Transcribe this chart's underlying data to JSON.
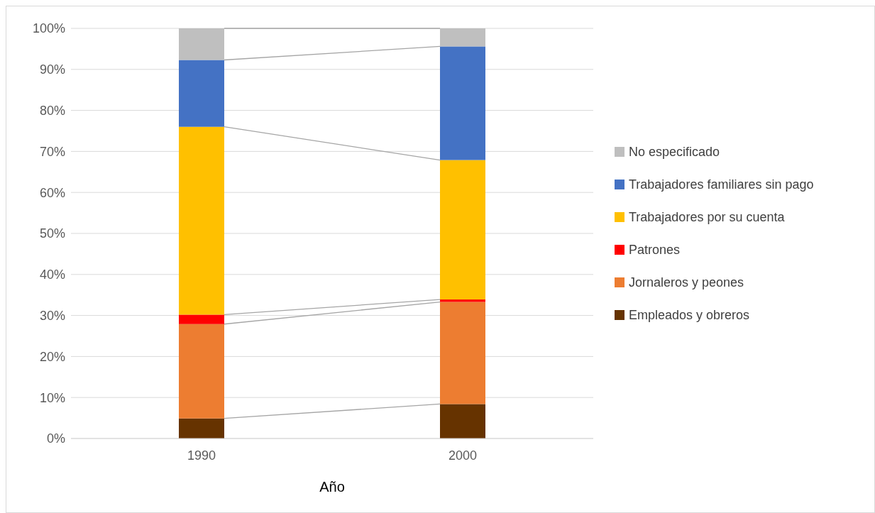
{
  "chart_data": {
    "type": "bar",
    "stacked": true,
    "xlabel": "Año",
    "categories": [
      "1990",
      "2000"
    ],
    "series": [
      {
        "name": "Empleados y obreros",
        "color": "#663300",
        "values": [
          4.9,
          8.4
        ]
      },
      {
        "name": "Jornaleros y peones",
        "color": "#ed7d31",
        "values": [
          23.0,
          24.9
        ]
      },
      {
        "name": "Patrones",
        "color": "#ff0000",
        "values": [
          2.3,
          0.6
        ]
      },
      {
        "name": "Trabajadores por su cuenta",
        "color": "#ffc000",
        "values": [
          45.8,
          34.0
        ]
      },
      {
        "name": "Trabajadores familiares sin pago",
        "color": "#4472c4",
        "values": [
          16.3,
          27.7
        ]
      },
      {
        "name": "No especificado",
        "color": "#bfbfbf",
        "values": [
          7.7,
          4.4
        ]
      }
    ],
    "ylim": [
      0,
      100
    ],
    "yticks": [
      {
        "value": 0,
        "label": "0%"
      },
      {
        "value": 10,
        "label": "10%"
      },
      {
        "value": 20,
        "label": "20%"
      },
      {
        "value": 30,
        "label": "30%"
      },
      {
        "value": 40,
        "label": "40%"
      },
      {
        "value": 50,
        "label": "50%"
      },
      {
        "value": 60,
        "label": "60%"
      },
      {
        "value": 70,
        "label": "70%"
      },
      {
        "value": 80,
        "label": "80%"
      },
      {
        "value": 90,
        "label": "90%"
      },
      {
        "value": 100,
        "label": "100%"
      }
    ],
    "grid": "y",
    "legend": "right"
  }
}
